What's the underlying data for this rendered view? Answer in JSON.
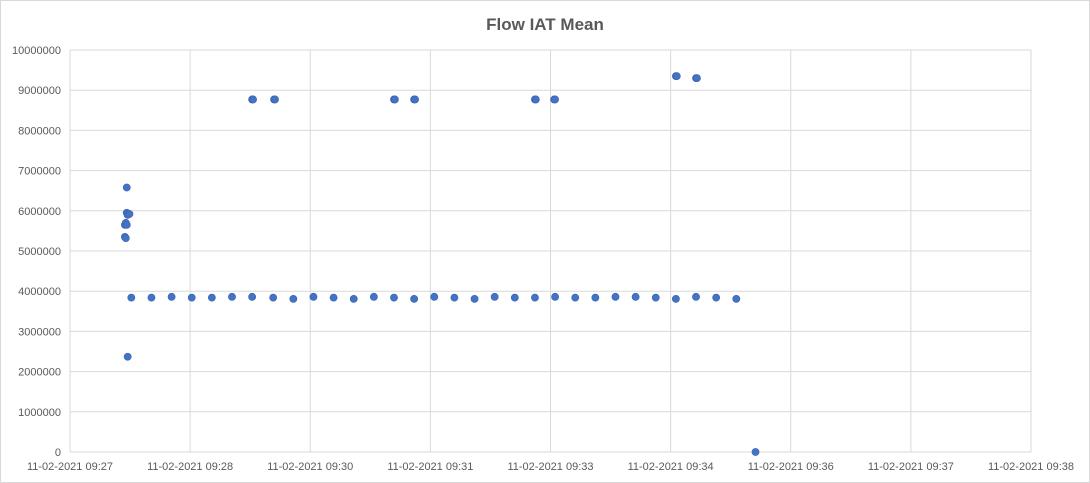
{
  "chart_data": {
    "type": "scatter",
    "title": "Flow IAT Mean",
    "xlabel": "",
    "ylabel": "",
    "ylim": [
      0,
      10000000
    ],
    "yticks": [
      0,
      1000000,
      2000000,
      3000000,
      4000000,
      5000000,
      6000000,
      7000000,
      8000000,
      9000000,
      10000000
    ],
    "ytick_labels": [
      "0",
      "1000000",
      "2000000",
      "3000000",
      "4000000",
      "5000000",
      "6000000",
      "7000000",
      "8000000",
      "9000000",
      "10000000"
    ],
    "xlim_minutes": [
      0,
      10.5
    ],
    "xtick_labels": [
      "11-02-2021 09:27",
      "11-02-2021 09:28",
      "11-02-2021 09:30",
      "11-02-2021 09:31",
      "11-02-2021 09:33",
      "11-02-2021 09:34",
      "11-02-2021 09:36",
      "11-02-2021 09:37",
      "11-02-2021 09:38"
    ],
    "grid": true,
    "legend": "none",
    "marker_color": "#4472c4",
    "points": [
      {
        "x": 0.6,
        "y": 5650000
      },
      {
        "x": 0.61,
        "y": 5700000
      },
      {
        "x": 0.62,
        "y": 5650000
      },
      {
        "x": 0.6,
        "y": 5350000
      },
      {
        "x": 0.61,
        "y": 5320000
      },
      {
        "x": 0.62,
        "y": 5950000
      },
      {
        "x": 0.63,
        "y": 5900000
      },
      {
        "x": 0.65,
        "y": 5920000
      },
      {
        "x": 0.62,
        "y": 6580000
      },
      {
        "x": 0.63,
        "y": 2370000
      },
      {
        "x": 0.67,
        "y": 3840000
      },
      {
        "x": 0.89,
        "y": 3840000
      },
      {
        "x": 1.11,
        "y": 3860000
      },
      {
        "x": 1.33,
        "y": 3840000
      },
      {
        "x": 1.55,
        "y": 3840000
      },
      {
        "x": 1.77,
        "y": 3860000
      },
      {
        "x": 1.99,
        "y": 3860000
      },
      {
        "x": 2.22,
        "y": 3840000
      },
      {
        "x": 2.44,
        "y": 3810000
      },
      {
        "x": 2.66,
        "y": 3860000
      },
      {
        "x": 2.88,
        "y": 3840000
      },
      {
        "x": 3.1,
        "y": 3810000
      },
      {
        "x": 3.32,
        "y": 3860000
      },
      {
        "x": 3.54,
        "y": 3840000
      },
      {
        "x": 3.76,
        "y": 3810000
      },
      {
        "x": 3.98,
        "y": 3860000
      },
      {
        "x": 4.2,
        "y": 3840000
      },
      {
        "x": 4.42,
        "y": 3810000
      },
      {
        "x": 4.64,
        "y": 3860000
      },
      {
        "x": 4.86,
        "y": 3840000
      },
      {
        "x": 5.08,
        "y": 3840000
      },
      {
        "x": 5.3,
        "y": 3860000
      },
      {
        "x": 5.52,
        "y": 3840000
      },
      {
        "x": 5.74,
        "y": 3840000
      },
      {
        "x": 5.96,
        "y": 3860000
      },
      {
        "x": 6.18,
        "y": 3860000
      },
      {
        "x": 6.4,
        "y": 3840000
      },
      {
        "x": 6.62,
        "y": 3810000
      },
      {
        "x": 6.84,
        "y": 3860000
      },
      {
        "x": 7.06,
        "y": 3840000
      },
      {
        "x": 7.28,
        "y": 3810000
      },
      {
        "x": 7.49,
        "y": 0
      },
      {
        "x": 1.99,
        "y": 8770000
      },
      {
        "x": 2.0,
        "y": 8770000
      },
      {
        "x": 2.23,
        "y": 8770000
      },
      {
        "x": 2.24,
        "y": 8770000
      },
      {
        "x": 3.54,
        "y": 8770000
      },
      {
        "x": 3.55,
        "y": 8770000
      },
      {
        "x": 3.76,
        "y": 8770000
      },
      {
        "x": 3.77,
        "y": 8770000
      },
      {
        "x": 5.08,
        "y": 8770000
      },
      {
        "x": 5.09,
        "y": 8770000
      },
      {
        "x": 5.29,
        "y": 8770000
      },
      {
        "x": 5.3,
        "y": 8770000
      },
      {
        "x": 6.62,
        "y": 9350000
      },
      {
        "x": 6.63,
        "y": 9350000
      },
      {
        "x": 6.84,
        "y": 9300000
      },
      {
        "x": 6.85,
        "y": 9300000
      }
    ]
  }
}
